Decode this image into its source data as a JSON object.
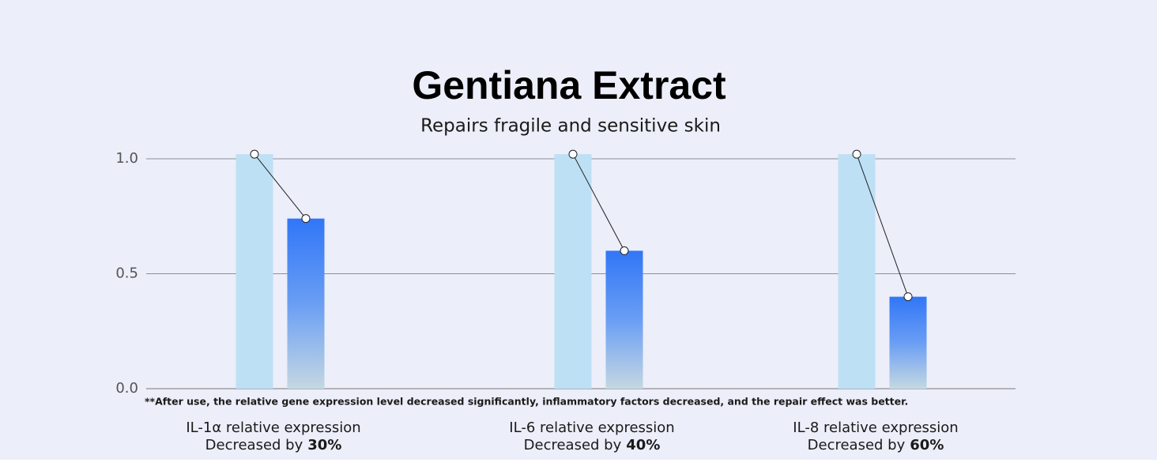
{
  "chart_data": {
    "type": "bar",
    "title": "Gentiana Extract",
    "subtitle": "Repairs fragile and sensitive skin",
    "categories": [
      "IL-1α relative expression",
      "IL-6 relative expression",
      "IL-8 relative expression"
    ],
    "annotations": [
      {
        "text": "Decreased by",
        "highlight": "30%"
      },
      {
        "text": "Decreased by",
        "highlight": "40%"
      },
      {
        "text": "Decreased by",
        "highlight": "60%"
      }
    ],
    "series": [
      {
        "color": "#bde0f5",
        "values": [
          1.02,
          1.02,
          1.02
        ]
      },
      {
        "color": "#3176f7",
        "values": [
          0.74,
          0.6,
          0.4
        ]
      }
    ],
    "ylim": [
      0,
      1
    ],
    "yticks": [
      {
        "value": 0,
        "label": "0.0"
      },
      {
        "value": 0.5,
        "label": "0.5"
      },
      {
        "value": 1,
        "label": "1.0"
      }
    ],
    "grid": true,
    "footnote": "**After use, the relative gene expression level decreased significantly, inflammatory factors decreased, and the repair effect was better."
  }
}
